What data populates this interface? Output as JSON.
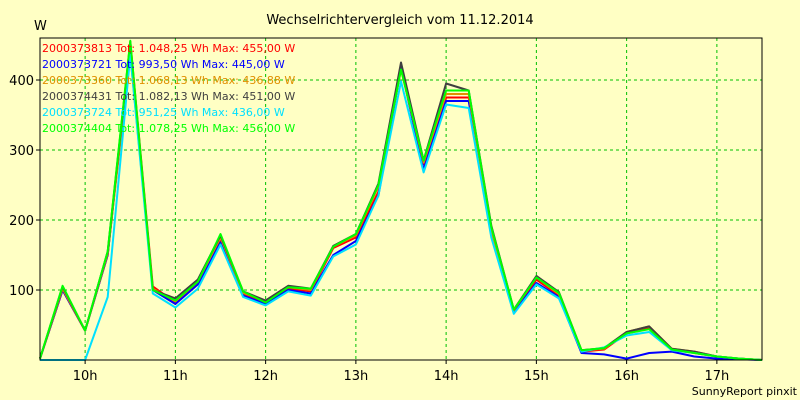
{
  "chart_data": {
    "type": "line",
    "title": "Wechselrichtervergleich vom 11.12.2014",
    "ylabel": "W",
    "xlabel": "",
    "footer": "SunnyReport pinxit",
    "ylim": [
      0,
      460
    ],
    "yticks": [
      100,
      200,
      300,
      400
    ],
    "xlim": [
      9.5,
      17.5
    ],
    "xticks": [
      {
        "value": 10,
        "label": "10h"
      },
      {
        "value": 11,
        "label": "11h"
      },
      {
        "value": 12,
        "label": "12h"
      },
      {
        "value": 13,
        "label": "13h"
      },
      {
        "value": 14,
        "label": "14h"
      },
      {
        "value": 15,
        "label": "15h"
      },
      {
        "value": 16,
        "label": "16h"
      },
      {
        "value": 17,
        "label": "17h"
      }
    ],
    "grid": true,
    "legend_position": "top-left",
    "x": [
      9.5,
      9.75,
      10,
      10.25,
      10.5,
      10.75,
      11,
      11.25,
      11.5,
      11.75,
      12,
      12.25,
      12.5,
      12.75,
      13,
      13.25,
      13.5,
      13.75,
      14,
      14.25,
      14.5,
      14.75,
      15,
      15.25,
      15.5,
      15.75,
      16,
      16.25,
      16.5,
      16.75,
      17,
      17.25,
      17.5
    ],
    "series": [
      {
        "name": "2000373813",
        "legend": "2000373813 Tot: 1.048,25 Wh Max: 455,00 W",
        "color": "#ff0000",
        "values": [
          2,
          100,
          42,
          150,
          455,
          105,
          82,
          110,
          170,
          95,
          82,
          102,
          98,
          160,
          175,
          240,
          420,
          280,
          375,
          375,
          180,
          70,
          115,
          92,
          12,
          15,
          38,
          45,
          15,
          10,
          5,
          2,
          0
        ]
      },
      {
        "name": "2000373721",
        "legend": "2000373721 Tot: 993,50 Wh Max: 445,00 W",
        "color": "#0000ff",
        "values": [
          2,
          100,
          42,
          150,
          445,
          100,
          80,
          108,
          168,
          92,
          80,
          100,
          95,
          150,
          170,
          235,
          418,
          272,
          370,
          370,
          178,
          68,
          110,
          90,
          10,
          8,
          2,
          10,
          12,
          5,
          2,
          1,
          0
        ]
      },
      {
        "name": "2000373360",
        "legend": "2000373360 Tot: 1.068,13 Wh Max: 436,88 W",
        "color": "#e09000",
        "values": [
          2,
          102,
          42,
          152,
          436,
          102,
          84,
          112,
          175,
          96,
          84,
          104,
          100,
          162,
          178,
          248,
          415,
          282,
          380,
          380,
          184,
          71,
          118,
          94,
          14,
          16,
          40,
          48,
          16,
          12,
          5,
          2,
          0
        ]
      },
      {
        "name": "2000374431",
        "legend": "2000374431 Tot: 1.082,13 Wh Max: 451,00 W",
        "color": "#404040",
        "values": [
          2,
          105,
          42,
          155,
          451,
          100,
          88,
          115,
          178,
          98,
          85,
          106,
          102,
          163,
          180,
          252,
          425,
          285,
          395,
          385,
          192,
          72,
          120,
          97,
          14,
          17,
          40,
          48,
          16,
          12,
          5,
          2,
          0
        ]
      },
      {
        "name": "2000373724",
        "legend": "2000373724 Tot: 951,25 Wh Max: 436,00 W",
        "color": "#00e0ff",
        "values": [
          0,
          0,
          0,
          90,
          436,
          95,
          75,
          102,
          165,
          90,
          78,
          98,
          92,
          148,
          165,
          235,
          398,
          268,
          365,
          360,
          175,
          66,
          108,
          88,
          12,
          18,
          35,
          40,
          14,
          10,
          5,
          2,
          0
        ]
      },
      {
        "name": "2000374404",
        "legend": "2000374404 Tot: 1.078,25 Wh Max: 456,00 W",
        "color": "#00ff00",
        "values": [
          2,
          106,
          42,
          155,
          456,
          100,
          85,
          112,
          180,
          98,
          82,
          104,
          102,
          162,
          180,
          250,
          415,
          285,
          385,
          385,
          190,
          72,
          118,
          96,
          14,
          17,
          38,
          44,
          15,
          10,
          5,
          2,
          0
        ]
      }
    ]
  }
}
